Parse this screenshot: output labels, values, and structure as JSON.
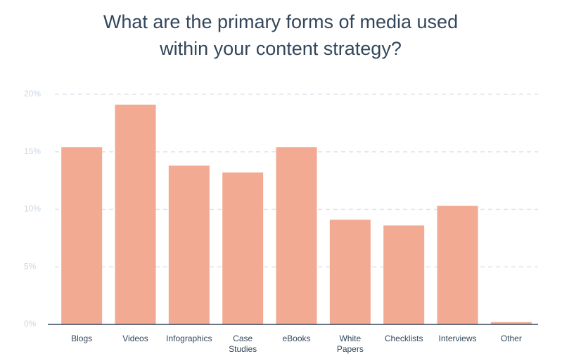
{
  "chart_data": {
    "type": "bar",
    "title": [
      "What are the primary forms of media used",
      "within your content strategy?"
    ],
    "categories": [
      "Blogs",
      "Videos",
      "Infographics",
      "Case Studies",
      "eBooks",
      "White Papers",
      "Checklists",
      "Interviews",
      "Other"
    ],
    "values": [
      15.4,
      19.1,
      13.8,
      13.2,
      15.4,
      9.1,
      8.6,
      10.3,
      0.2
    ],
    "color": "#f2aa92",
    "ylim": [
      0,
      20
    ],
    "yticks": [
      {
        "value": 0,
        "label": "0%"
      },
      {
        "value": 5,
        "label": "5%"
      },
      {
        "value": 10,
        "label": "10%"
      },
      {
        "value": 15,
        "label": "15%"
      },
      {
        "value": 20,
        "label": "20%"
      }
    ],
    "grid": true
  }
}
